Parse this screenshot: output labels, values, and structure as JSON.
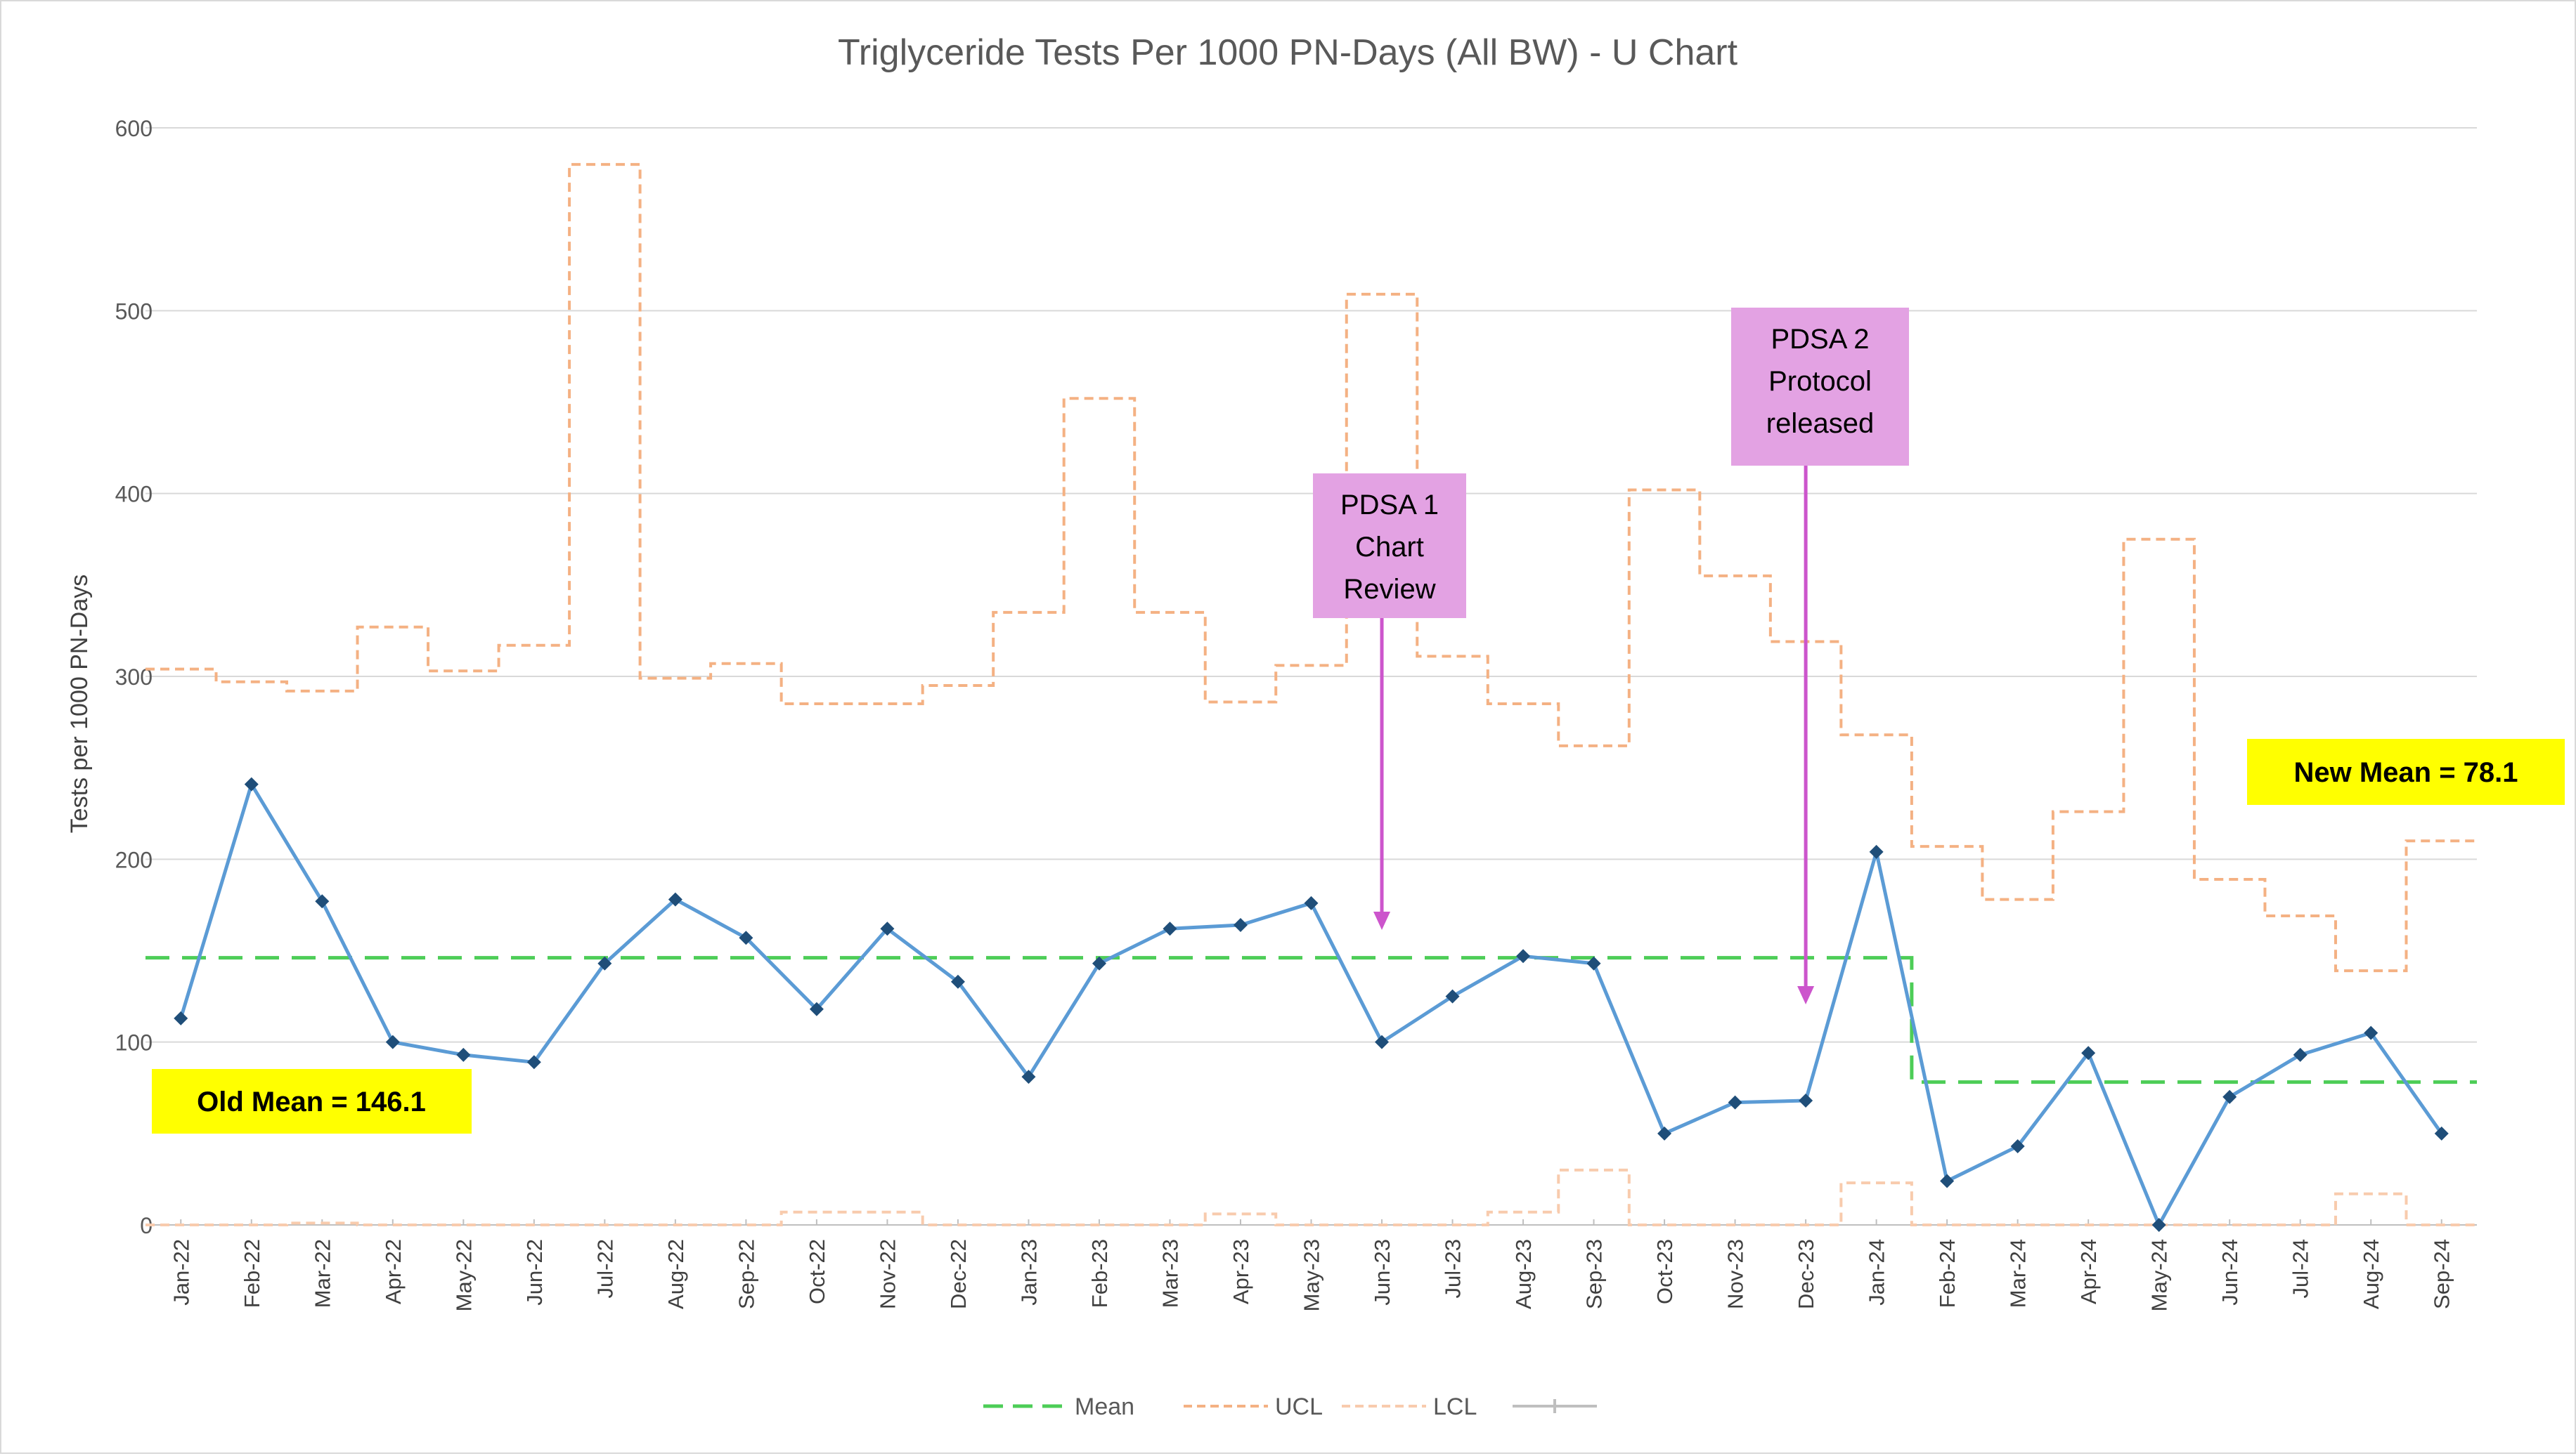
{
  "chart_data": {
    "type": "line",
    "title": "Triglyceride Tests Per 1000 PN-Days (All BW) -  U Chart",
    "xlabel": "",
    "ylabel": "Tests per 1000 PN-Days",
    "ylim": [
      0,
      600
    ],
    "y_ticks": [
      "0",
      "100",
      "200",
      "300",
      "400",
      "500",
      "600"
    ],
    "grid": true,
    "legend_position": "bottom",
    "categories": [
      "Jan-22",
      "Feb-22",
      "Mar-22",
      "Apr-22",
      "May-22",
      "Jun-22",
      "Jul-22",
      "Aug-22",
      "Sep-22",
      "Oct-22",
      "Nov-22",
      "Dec-22",
      "Jan-23",
      "Feb-23",
      "Mar-23",
      "Apr-23",
      "May-23",
      "Jun-23",
      "Jul-23",
      "Aug-23",
      "Sep-23",
      "Oct-23",
      "Nov-23",
      "Dec-23",
      "Jan-24",
      "Feb-24",
      "Mar-24",
      "Apr-24",
      "May-24",
      "Jun-24",
      "Jul-24",
      "Aug-24",
      "Sep-24"
    ],
    "series": [
      {
        "values": [
          113,
          241,
          177,
          100,
          93,
          89,
          143,
          178,
          157,
          118,
          162,
          133,
          81,
          143,
          162,
          164,
          176,
          100,
          125,
          147,
          143,
          50,
          67,
          68,
          204,
          24,
          43,
          94,
          0,
          70,
          93,
          105,
          50
        ],
        "color": "#5b9bd5",
        "style": "solid",
        "markers": true
      },
      {
        "name": "Mean",
        "values": [
          146.1,
          146.1,
          146.1,
          146.1,
          146.1,
          146.1,
          146.1,
          146.1,
          146.1,
          146.1,
          146.1,
          146.1,
          146.1,
          146.1,
          146.1,
          146.1,
          146.1,
          146.1,
          146.1,
          146.1,
          146.1,
          146.1,
          146.1,
          146.1,
          146.1,
          78.1,
          78.1,
          78.1,
          78.1,
          78.1,
          78.1,
          78.1,
          78.1
        ],
        "color": "#4dcd57",
        "style": "dashed-step"
      },
      {
        "name": "UCL",
        "values": [
          304,
          297,
          292,
          327,
          303,
          317,
          580,
          299,
          307,
          285,
          285,
          295,
          335,
          452,
          335,
          286,
          306,
          509,
          311,
          285,
          262,
          402,
          355,
          319,
          268,
          207,
          178,
          226,
          375,
          189,
          169,
          139,
          210
        ],
        "color": "#f4b183",
        "style": "dashed-step"
      },
      {
        "name": "LCL",
        "values": [
          0,
          0,
          1,
          0,
          0,
          0,
          0,
          0,
          0,
          7,
          7,
          0,
          0,
          0,
          0,
          6,
          0,
          0,
          0,
          7,
          30,
          0,
          0,
          0,
          23,
          0,
          0,
          0,
          0,
          0,
          0,
          17,
          0
        ],
        "color": "#f8cbad",
        "style": "dashed-step"
      }
    ],
    "legend": [
      {
        "label": "Mean",
        "color": "#4dcd57",
        "style": "dashed"
      },
      {
        "label": "UCL",
        "color": "#f4b183",
        "style": "dashed"
      },
      {
        "label": "LCL",
        "color": "#f8cbad",
        "style": "dashed"
      },
      {
        "label": "",
        "color": "#bfbfbf",
        "style": "marker-line"
      }
    ],
    "annotations": [
      {
        "id": "old-mean",
        "text": "Old Mean = 146.1",
        "fill": "#ffff00"
      },
      {
        "id": "new-mean",
        "text": "New Mean = 78.1",
        "fill": "#ffff00"
      },
      {
        "id": "pdsa1",
        "lines": [
          "PDSA 1",
          "Chart",
          "Review"
        ],
        "fill": "#e3a2e3",
        "arrow_color": "#cc55cc",
        "points_to": "Jun-23"
      },
      {
        "id": "pdsa2",
        "lines": [
          "PDSA 2",
          "Protocol",
          "released"
        ],
        "fill": "#e3a2e3",
        "arrow_color": "#cc55cc",
        "points_to": "Dec-23"
      }
    ]
  }
}
